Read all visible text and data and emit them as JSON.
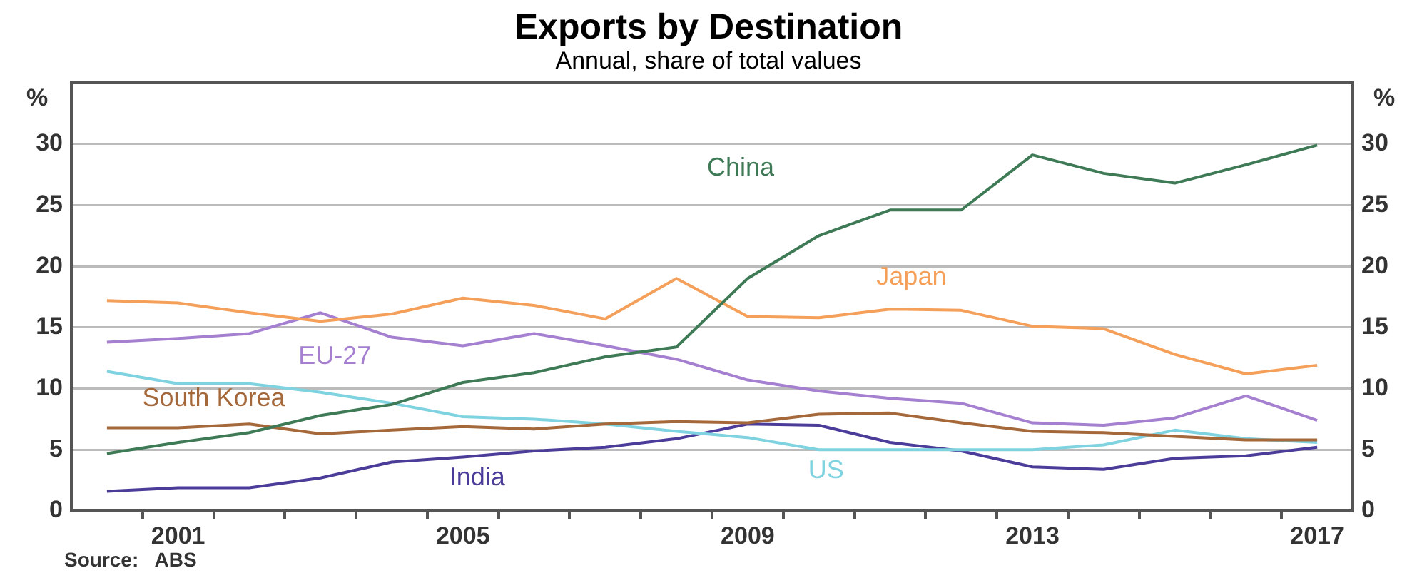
{
  "chart_data": {
    "type": "line",
    "title": "Exports by Destination",
    "subtitle": "Annual, share of total values",
    "ylabel": "%",
    "y2label": "%",
    "x": [
      2000,
      2001,
      2002,
      2003,
      2004,
      2005,
      2006,
      2007,
      2008,
      2009,
      2010,
      2011,
      2012,
      2013,
      2014,
      2015,
      2016,
      2017
    ],
    "xlim": [
      1999.5,
      2017.5
    ],
    "xticks": [
      {
        "value": 2000.5,
        "label": null
      },
      2001,
      {
        "value": 2001.5,
        "label": null
      },
      {
        "value": 2002.5,
        "label": null
      },
      {
        "value": 2003.5,
        "label": null
      },
      {
        "value": 2004.5,
        "label": null
      },
      2005,
      {
        "value": 2005.5,
        "label": null
      },
      {
        "value": 2006.5,
        "label": null
      },
      {
        "value": 2007.5,
        "label": null
      },
      {
        "value": 2008.5,
        "label": null
      },
      2009,
      {
        "value": 2009.5,
        "label": null
      },
      {
        "value": 2010.5,
        "label": null
      },
      {
        "value": 2011.5,
        "label": null
      },
      {
        "value": 2012.5,
        "label": null
      },
      2013,
      {
        "value": 2013.5,
        "label": null
      },
      {
        "value": 2014.5,
        "label": null
      },
      {
        "value": 2015.5,
        "label": null
      },
      {
        "value": 2016.5,
        "label": null
      },
      2017
    ],
    "ylim": [
      0,
      35
    ],
    "yticks": [
      0,
      5,
      10,
      15,
      20,
      25,
      30
    ],
    "y2lim": [
      0,
      35
    ],
    "y2ticks": [
      0,
      5,
      10,
      15,
      20,
      25,
      30
    ],
    "grid": "y",
    "legend": false,
    "series": [
      {
        "name": "China",
        "color": "#3d7a55",
        "values": [
          4.7,
          5.6,
          6.4,
          7.8,
          8.7,
          10.5,
          11.3,
          12.6,
          13.4,
          19.0,
          22.5,
          24.6,
          24.6,
          29.1,
          27.6,
          26.8,
          28.3,
          29.9
        ]
      },
      {
        "name": "Japan",
        "color": "#f5a05a",
        "values": [
          17.2,
          17.0,
          16.2,
          15.5,
          16.1,
          17.4,
          16.8,
          15.7,
          19.0,
          15.9,
          15.8,
          16.5,
          16.4,
          15.1,
          14.9,
          12.8,
          11.2,
          11.9
        ]
      },
      {
        "name": "EU-27",
        "color": "#a57fd0",
        "values": [
          13.8,
          14.1,
          14.5,
          16.2,
          14.2,
          13.5,
          14.5,
          13.5,
          12.4,
          10.7,
          9.8,
          9.2,
          8.8,
          7.2,
          7.0,
          7.6,
          9.4,
          7.4
        ]
      },
      {
        "name": "South Korea",
        "color": "#a5683a",
        "values": [
          6.8,
          6.8,
          7.1,
          6.3,
          6.6,
          6.9,
          6.7,
          7.1,
          7.3,
          7.2,
          7.9,
          8.0,
          7.2,
          6.5,
          6.4,
          6.1,
          5.8,
          5.8
        ]
      },
      {
        "name": "US",
        "color": "#7fd3e0",
        "values": [
          11.4,
          10.4,
          10.4,
          9.7,
          8.8,
          7.7,
          7.5,
          7.1,
          6.5,
          6.0,
          5.0,
          5.0,
          5.0,
          5.0,
          5.4,
          6.6,
          5.9,
          5.6
        ]
      },
      {
        "name": "India",
        "color": "#4b3c9a",
        "values": [
          1.6,
          1.9,
          1.9,
          2.7,
          4.0,
          4.4,
          4.9,
          5.2,
          5.9,
          7.1,
          7.0,
          5.6,
          4.9,
          3.6,
          3.4,
          4.3,
          4.5,
          5.2
        ]
      }
    ],
    "annotations": [
      "Source:   ABS"
    ]
  }
}
